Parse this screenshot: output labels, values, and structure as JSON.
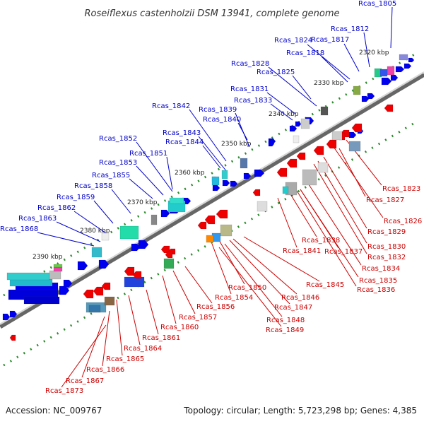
{
  "title": "Roseiflexus castenholzii DSM 13941, complete genome",
  "accession": "Accession: NC_009767",
  "summary": "Topology: circular; Length: 5,723,298 bp; Genes: 4,385",
  "colors": {
    "forward_label": "#0000cc",
    "reverse_label": "#cc0000",
    "forward_gene": "#0000ee",
    "reverse_gene": "#ee0000",
    "tick": "#2a8a2a",
    "backbone": "#888888"
  },
  "kbp_marks": [
    "2320 kbp",
    "2330 kbp",
    "2340 kbp",
    "2350 kbp",
    "2360 kbp",
    "2370 kbp",
    "2380 kbp",
    "2390 kbp"
  ],
  "forward_genes": [
    "Rcas_1805",
    "Rcas_1812",
    "Rcas_1817",
    "Rcas_1824",
    "Rcas_1818",
    "Rcas_1828",
    "Rcas_1825",
    "Rcas_1831",
    "Rcas_1833",
    "Rcas_1842",
    "Rcas_1839",
    "Rcas_1840",
    "Rcas_1843",
    "Rcas_1844",
    "Rcas_1852",
    "Rcas_1851",
    "Rcas_1853",
    "Rcas_1855",
    "Rcas_1858",
    "Rcas_1859",
    "Rcas_1862",
    "Rcas_1863",
    "Rcas_1868"
  ],
  "reverse_genes": [
    "Rcas_1823",
    "Rcas_1827",
    "Rcas_1826",
    "Rcas_1829",
    "Rcas_1830",
    "Rcas_1832",
    "Rcas_1838",
    "Rcas_1841",
    "Rcas_1837",
    "Rcas_1834",
    "Rcas_1835",
    "Rcas_1836",
    "Rcas_1845",
    "Rcas_1850",
    "Rcas_1846",
    "Rcas_1854",
    "Rcas_1847",
    "Rcas_1856",
    "Rcas_1848",
    "Rcas_1857",
    "Rcas_1849",
    "Rcas_1860",
    "Rcas_1861",
    "Rcas_1864",
    "Rcas_1865",
    "Rcas_1866",
    "Rcas_1867",
    "Rcas_1873"
  ]
}
